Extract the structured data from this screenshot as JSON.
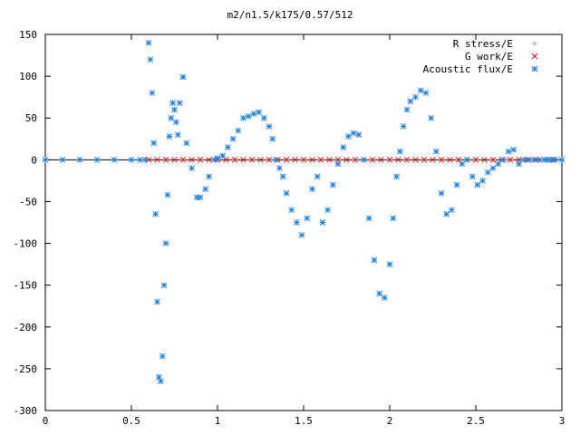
{
  "chart_data": {
    "type": "scatter",
    "title": "m2/n1.5/k175/0.57/512",
    "xlabel": "",
    "ylabel": "",
    "xlim": [
      0,
      3
    ],
    "ylim": [
      -300,
      150
    ],
    "x_ticks": [
      0,
      0.5,
      1,
      1.5,
      2,
      2.5,
      3
    ],
    "x_tick_labels": [
      "0",
      "0.5",
      "1",
      "1.5",
      "2",
      "2.5",
      "3"
    ],
    "y_ticks": [
      -300,
      -250,
      -200,
      -150,
      -100,
      -50,
      0,
      50,
      100,
      150
    ],
    "y_tick_labels": [
      "-300",
      "-250",
      "-200",
      "-150",
      "-100",
      "-50",
      "0",
      "50",
      "100",
      "150"
    ],
    "grid": false,
    "legend_position": "top-right",
    "series": [
      {
        "name": "R stress/E",
        "marker": "+",
        "color": "#a0a0a0",
        "x": [
          0.0,
          0.1,
          0.2,
          0.3,
          0.4,
          0.5,
          0.58,
          0.7,
          0.8,
          0.9,
          1.0,
          1.1,
          1.2,
          1.3,
          1.4,
          1.5,
          1.6,
          1.7,
          1.8,
          1.9,
          2.0,
          2.1,
          2.2,
          2.3,
          2.4,
          2.5,
          2.6,
          2.7,
          2.8,
          2.9,
          2.95
        ],
        "y": [
          0,
          0,
          0,
          0,
          0,
          0,
          0,
          0,
          0,
          0,
          0,
          0,
          0,
          0,
          0,
          0,
          0,
          0,
          0,
          0,
          0,
          0,
          0,
          0,
          0,
          0,
          0,
          0,
          0,
          0,
          0
        ]
      },
      {
        "name": "G work/E",
        "marker": "x",
        "color": "#ff0000",
        "x": [
          0.6,
          0.65,
          0.7,
          0.75,
          0.8,
          0.85,
          0.9,
          0.95,
          1.0,
          1.05,
          1.1,
          1.15,
          1.2,
          1.25,
          1.3,
          1.35,
          1.4,
          1.45,
          1.5,
          1.55,
          1.6,
          1.65,
          1.7,
          1.75,
          1.8,
          1.85,
          1.9,
          1.95,
          2.0,
          2.05,
          2.1,
          2.15,
          2.2,
          2.25,
          2.3,
          2.35,
          2.4,
          2.45,
          2.5,
          2.55,
          2.6,
          2.65,
          2.7,
          2.75,
          2.8,
          2.85,
          2.9,
          2.95
        ],
        "y": [
          0,
          0,
          0,
          0,
          0,
          0,
          0,
          0,
          0,
          0,
          0,
          0,
          0,
          0,
          0,
          0,
          0,
          0,
          0,
          0,
          0,
          0,
          0,
          0,
          0,
          0,
          0,
          0,
          0,
          0,
          0,
          0,
          0,
          0,
          0,
          0,
          0,
          0,
          0,
          0,
          0,
          0,
          0,
          0,
          0,
          0,
          0,
          0
        ]
      },
      {
        "name": "Acoustic flux/E",
        "marker": "*",
        "color": "#1e82dc",
        "x": [
          0.0,
          0.1,
          0.2,
          0.3,
          0.4,
          0.5,
          0.55,
          0.58,
          0.6,
          0.61,
          0.62,
          0.63,
          0.64,
          0.65,
          0.66,
          0.67,
          0.68,
          0.69,
          0.7,
          0.71,
          0.72,
          0.73,
          0.74,
          0.75,
          0.76,
          0.77,
          0.78,
          0.8,
          0.82,
          0.85,
          0.88,
          0.9,
          0.93,
          0.95,
          0.98,
          1.0,
          1.03,
          1.06,
          1.09,
          1.12,
          1.15,
          1.18,
          1.21,
          1.24,
          1.27,
          1.3,
          1.32,
          1.34,
          1.36,
          1.38,
          1.4,
          1.43,
          1.46,
          1.49,
          1.52,
          1.55,
          1.58,
          1.61,
          1.64,
          1.67,
          1.7,
          1.73,
          1.76,
          1.79,
          1.82,
          1.85,
          1.88,
          1.91,
          1.94,
          1.97,
          2.0,
          2.02,
          2.04,
          2.06,
          2.08,
          2.1,
          2.12,
          2.15,
          2.18,
          2.21,
          2.24,
          2.27,
          2.3,
          2.33,
          2.36,
          2.39,
          2.42,
          2.45,
          2.48,
          2.51,
          2.54,
          2.57,
          2.6,
          2.63,
          2.66,
          2.69,
          2.72,
          2.75,
          2.78,
          2.81,
          2.84,
          2.87,
          2.9,
          2.92,
          2.94,
          2.96,
          3.0
        ],
        "y": [
          0,
          0,
          0,
          0,
          0,
          0,
          0,
          0,
          140,
          120,
          80,
          20,
          -65,
          -170,
          -260,
          -265,
          -235,
          -150,
          -100,
          -42,
          28,
          50,
          68,
          60,
          45,
          30,
          68,
          99,
          20,
          -10,
          -45,
          -45,
          -35,
          -20,
          0,
          2,
          5,
          15,
          25,
          35,
          50,
          52,
          55,
          57,
          50,
          40,
          25,
          0,
          -10,
          -20,
          -40,
          -60,
          -75,
          -90,
          -70,
          -35,
          -20,
          -75,
          -60,
          -30,
          -5,
          15,
          28,
          32,
          30,
          0,
          -70,
          -120,
          -160,
          -165,
          -125,
          -70,
          -20,
          10,
          40,
          60,
          70,
          75,
          83,
          80,
          50,
          10,
          -40,
          -65,
          -60,
          -30,
          -5,
          0,
          -20,
          -30,
          -25,
          -15,
          -10,
          -5,
          0,
          10,
          12,
          -5,
          0,
          0,
          0,
          0,
          0,
          0,
          0,
          0,
          0
        ]
      }
    ]
  }
}
